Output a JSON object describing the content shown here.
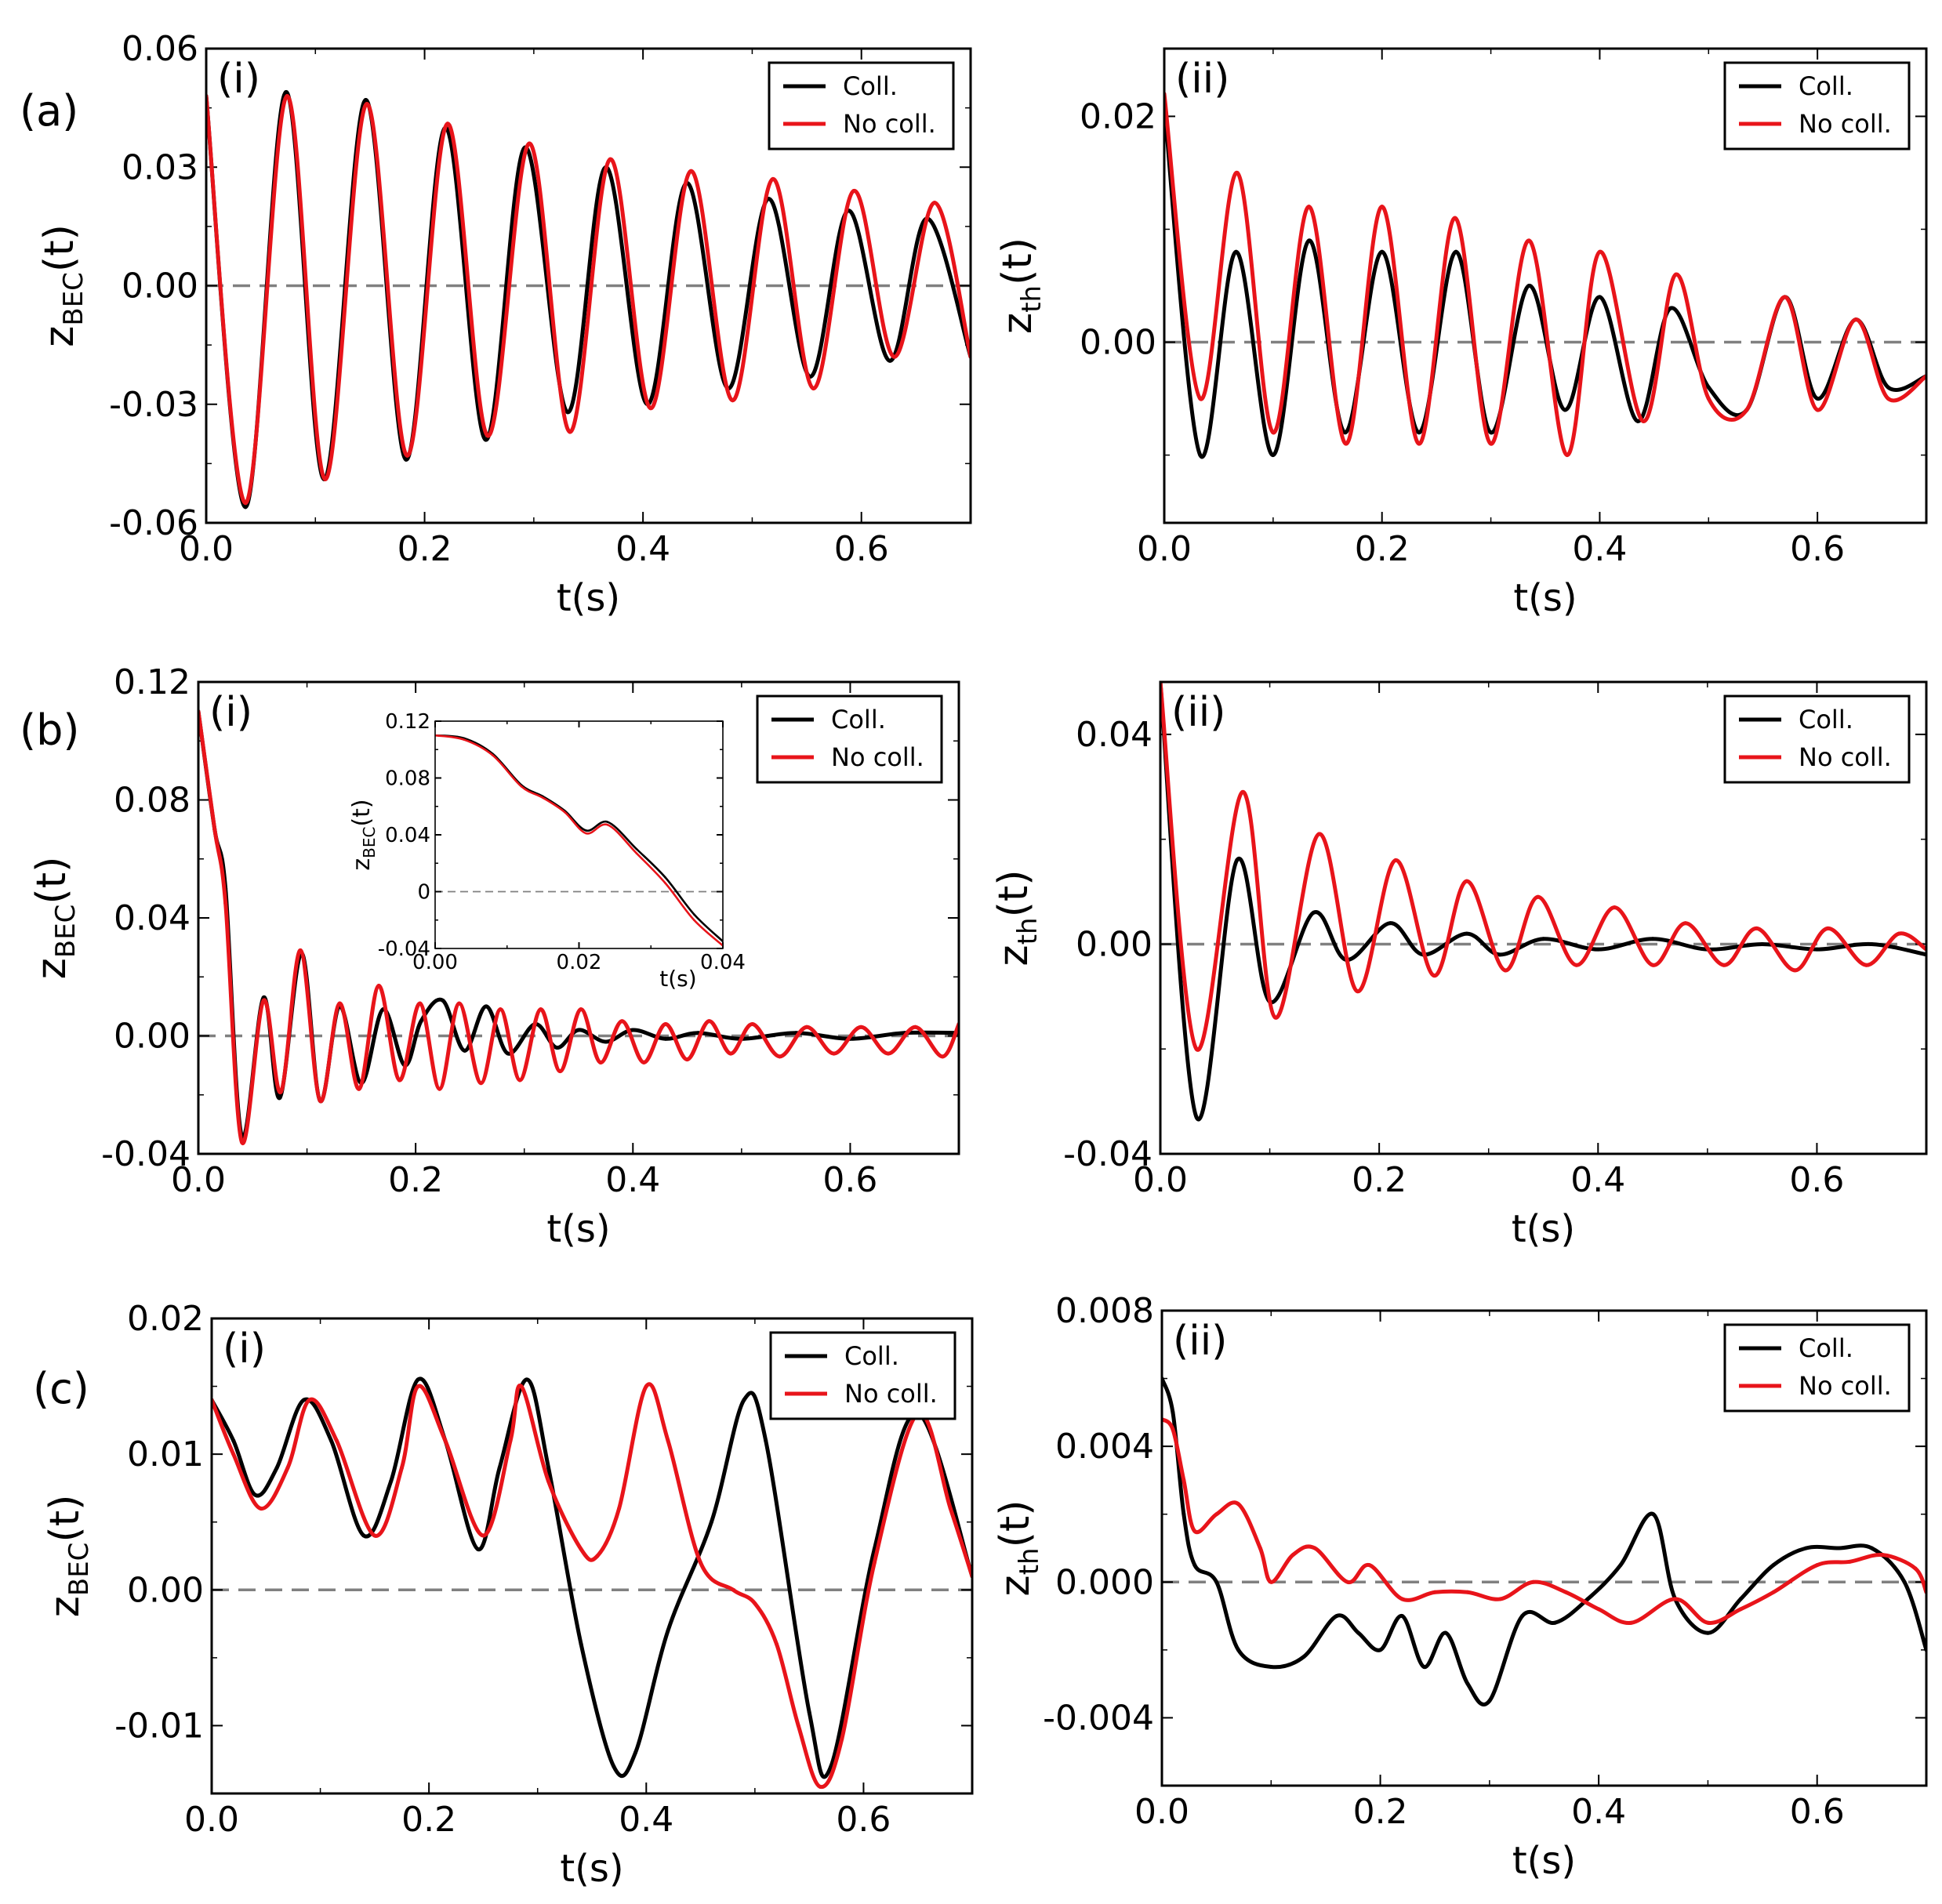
{
  "figure": {
    "row_labels": [
      "(a)",
      "(b)",
      "(c)"
    ],
    "colors": {
      "collisional": "#000000",
      "no_collisions": "#e8141a",
      "zero_line": "#808080"
    }
  },
  "chart_data": [
    {
      "id": "a-i",
      "type": "line",
      "row": "(a)",
      "panel_label": "(i)",
      "xlabel": "t(s)",
      "ylabel": "z_BEC(t)",
      "ylabel_main": "z",
      "ylabel_sub": "BEC",
      "ylabel_tail": "(t)",
      "xlim": [
        0,
        0.7
      ],
      "ylim": [
        -0.06,
        0.06
      ],
      "xticks": [
        0,
        0.2,
        0.4,
        0.6
      ],
      "xtick_labels": [
        "0.0",
        "0.2",
        "0.4",
        "0.6"
      ],
      "yticks": [
        -0.06,
        -0.03,
        0,
        0.03,
        0.06
      ],
      "ytick_labels": [
        "-0.06",
        "-0.03",
        "0.00",
        "0.03",
        "0.06"
      ],
      "legend": {
        "position": "top-right",
        "entries": [
          "Coll.",
          "No coll."
        ]
      },
      "series": [
        {
          "name": "Coll.",
          "x": [
            0,
            0.036,
            0.073,
            0.108,
            0.146,
            0.183,
            0.219,
            0.256,
            0.292,
            0.331,
            0.366,
            0.404,
            0.44,
            0.478,
            0.515,
            0.553,
            0.588,
            0.626,
            0.66,
            0.7
          ],
          "y": [
            0.048,
            -0.056,
            0.049,
            -0.049,
            0.047,
            -0.044,
            0.04,
            -0.039,
            0.035,
            -0.032,
            0.03,
            -0.03,
            0.026,
            -0.026,
            0.022,
            -0.023,
            0.019,
            -0.019,
            0.017,
            -0.018
          ]
        },
        {
          "name": "No coll.",
          "x": [
            0,
            0.036,
            0.074,
            0.109,
            0.147,
            0.184,
            0.221,
            0.258,
            0.296,
            0.333,
            0.37,
            0.407,
            0.444,
            0.482,
            0.519,
            0.556,
            0.593,
            0.63,
            0.667,
            0.7
          ],
          "y": [
            0.048,
            -0.055,
            0.048,
            -0.049,
            0.046,
            -0.043,
            0.041,
            -0.038,
            0.036,
            -0.037,
            0.032,
            -0.031,
            0.029,
            -0.029,
            0.027,
            -0.026,
            0.024,
            -0.018,
            0.021,
            -0.018
          ]
        }
      ]
    },
    {
      "id": "a-ii",
      "type": "line",
      "row": "(a)",
      "panel_label": "(ii)",
      "xlabel": "t(s)",
      "ylabel": "z_th(t)",
      "ylabel_main": "z",
      "ylabel_sub": "th",
      "ylabel_tail": "(t)",
      "xlim": [
        0,
        0.7
      ],
      "ylim": [
        -0.016,
        0.026
      ],
      "xticks": [
        0,
        0.2,
        0.4,
        0.6
      ],
      "xtick_labels": [
        "0.0",
        "0.2",
        "0.4",
        "0.6"
      ],
      "yticks": [
        0,
        0.02
      ],
      "ytick_labels": [
        "0.00",
        "0.02"
      ],
      "legend": {
        "position": "top-right",
        "entries": [
          "Coll.",
          "No coll."
        ]
      },
      "series": [
        {
          "name": "Coll.",
          "x": [
            0,
            0.033,
            0.066,
            0.1,
            0.133,
            0.166,
            0.2,
            0.234,
            0.268,
            0.3,
            0.335,
            0.368,
            0.4,
            0.435,
            0.465,
            0.5,
            0.535,
            0.57,
            0.6,
            0.635,
            0.665,
            0.7
          ],
          "y": [
            0.021,
            -0.01,
            0.008,
            -0.01,
            0.009,
            -0.008,
            0.008,
            -0.008,
            0.008,
            -0.008,
            0.005,
            -0.006,
            0.004,
            -0.007,
            0.003,
            -0.004,
            -0.006,
            0.004,
            -0.005,
            0.002,
            -0.004,
            -0.003
          ]
        },
        {
          "name": "No coll.",
          "x": [
            0,
            0.033,
            0.067,
            0.1,
            0.133,
            0.167,
            0.2,
            0.234,
            0.267,
            0.3,
            0.335,
            0.37,
            0.4,
            0.44,
            0.47,
            0.5,
            0.535,
            0.57,
            0.6,
            0.635,
            0.665,
            0.7
          ],
          "y": [
            0.022,
            -0.005,
            0.015,
            -0.008,
            0.012,
            -0.009,
            0.012,
            -0.009,
            0.011,
            -0.009,
            0.009,
            -0.01,
            0.008,
            -0.007,
            0.006,
            -0.005,
            -0.006,
            0.004,
            -0.006,
            0.002,
            -0.005,
            -0.003
          ]
        }
      ]
    },
    {
      "id": "b-i",
      "type": "line",
      "row": "(b)",
      "panel_label": "(i)",
      "xlabel": "t(s)",
      "ylabel": "z_BEC(t)",
      "ylabel_main": "z",
      "ylabel_sub": "BEC",
      "ylabel_tail": "(t)",
      "xlim": [
        0,
        0.7
      ],
      "ylim": [
        -0.04,
        0.12
      ],
      "xticks": [
        0,
        0.2,
        0.4,
        0.6
      ],
      "xtick_labels": [
        "0.0",
        "0.2",
        "0.4",
        "0.6"
      ],
      "yticks": [
        -0.04,
        0,
        0.04,
        0.08,
        0.12
      ],
      "ytick_labels": [
        "-0.04",
        "0.00",
        "0.04",
        "0.08",
        "0.12"
      ],
      "legend": {
        "position": "top-right",
        "entries": [
          "Coll.",
          "No coll."
        ]
      },
      "series": [
        {
          "name": "Coll.",
          "x": [
            0,
            0.015,
            0.025,
            0.04,
            0.06,
            0.075,
            0.095,
            0.112,
            0.13,
            0.15,
            0.17,
            0.19,
            0.205,
            0.225,
            0.245,
            0.265,
            0.285,
            0.31,
            0.33,
            0.35,
            0.375,
            0.4,
            0.43,
            0.46,
            0.5,
            0.55,
            0.6,
            0.65,
            0.7
          ],
          "y": [
            0.11,
            0.07,
            0.05,
            -0.034,
            0.013,
            -0.021,
            0.028,
            -0.022,
            0.01,
            -0.016,
            0.009,
            -0.01,
            0.005,
            0.012,
            -0.005,
            0.01,
            -0.006,
            0.004,
            -0.004,
            0.002,
            -0.002,
            0.002,
            -0.001,
            0.001,
            -0.001,
            0.001,
            -0.001,
            0.001,
            0.001
          ]
        },
        {
          "name": "No coll.",
          "x": [
            0,
            0.015,
            0.025,
            0.04,
            0.06,
            0.076,
            0.094,
            0.112,
            0.13,
            0.148,
            0.166,
            0.185,
            0.204,
            0.222,
            0.24,
            0.26,
            0.278,
            0.296,
            0.315,
            0.333,
            0.352,
            0.37,
            0.39,
            0.41,
            0.43,
            0.45,
            0.47,
            0.49,
            0.51,
            0.535,
            0.56,
            0.585,
            0.61,
            0.635,
            0.66,
            0.685,
            0.7
          ],
          "y": [
            0.11,
            0.07,
            0.045,
            -0.036,
            0.012,
            -0.019,
            0.029,
            -0.022,
            0.011,
            -0.018,
            0.017,
            -0.015,
            0.011,
            -0.018,
            0.011,
            -0.016,
            0.009,
            -0.015,
            0.009,
            -0.012,
            0.009,
            -0.009,
            0.005,
            -0.009,
            0.004,
            -0.008,
            0.005,
            -0.006,
            0.004,
            -0.007,
            0.003,
            -0.006,
            0.003,
            -0.006,
            0.003,
            -0.007,
            0.004
          ]
        }
      ],
      "inset": {
        "type": "line",
        "xlabel": "t(s)",
        "ylabel": "z_BEC(t)",
        "ylabel_main": "z",
        "ylabel_sub": "BEC",
        "ylabel_tail": "(t)",
        "xlim": [
          0,
          0.04
        ],
        "ylim": [
          -0.04,
          0.12
        ],
        "xticks": [
          0,
          0.02,
          0.04
        ],
        "xtick_labels": [
          "0.00",
          "0.02",
          "0.04"
        ],
        "yticks": [
          -0.04,
          0,
          0.04,
          0.08,
          0.12
        ],
        "ytick_labels": [
          "-0.04",
          "0",
          "0.04",
          "0.08",
          "0.12"
        ],
        "series": [
          {
            "name": "Coll.",
            "x": [
              0,
              0.004,
              0.008,
              0.012,
              0.015,
              0.018,
              0.021,
              0.024,
              0.028,
              0.032,
              0.036,
              0.04
            ],
            "y": [
              0.11,
              0.108,
              0.097,
              0.075,
              0.067,
              0.057,
              0.043,
              0.049,
              0.03,
              0.01,
              -0.016,
              -0.035
            ]
          },
          {
            "name": "No coll.",
            "x": [
              0,
              0.004,
              0.008,
              0.012,
              0.015,
              0.018,
              0.021,
              0.024,
              0.028,
              0.032,
              0.036,
              0.04
            ],
            "y": [
              0.11,
              0.107,
              0.096,
              0.074,
              0.066,
              0.056,
              0.041,
              0.047,
              0.027,
              0.006,
              -0.02,
              -0.038
            ]
          }
        ]
      }
    },
    {
      "id": "b-ii",
      "type": "line",
      "row": "(b)",
      "panel_label": "(ii)",
      "xlabel": "t(s)",
      "ylabel": "z_th(t)",
      "ylabel_main": "z",
      "ylabel_sub": "th",
      "ylabel_tail": "(t)",
      "xlim": [
        0,
        0.7
      ],
      "ylim": [
        -0.04,
        0.05
      ],
      "xticks": [
        0,
        0.2,
        0.4,
        0.6
      ],
      "xtick_labels": [
        "0.0",
        "0.2",
        "0.4",
        "0.6"
      ],
      "yticks": [
        -0.04,
        0,
        0.04
      ],
      "ytick_labels": [
        "-0.04",
        "0.00",
        "0.04"
      ],
      "legend": {
        "position": "top-right",
        "entries": [
          "Coll.",
          "No coll."
        ]
      },
      "series": [
        {
          "name": "Coll.",
          "x": [
            0,
            0.033,
            0.07,
            0.1,
            0.14,
            0.17,
            0.21,
            0.24,
            0.28,
            0.31,
            0.35,
            0.4,
            0.45,
            0.5,
            0.55,
            0.6,
            0.65,
            0.7
          ],
          "y": [
            0.05,
            -0.033,
            0.016,
            -0.011,
            0.006,
            -0.003,
            0.004,
            -0.002,
            0.002,
            -0.002,
            0.001,
            -0.001,
            0.001,
            -0.001,
            0.0,
            -0.001,
            0.0,
            -0.002
          ]
        },
        {
          "name": "No coll.",
          "x": [
            0,
            0.033,
            0.075,
            0.105,
            0.145,
            0.18,
            0.215,
            0.25,
            0.28,
            0.315,
            0.345,
            0.38,
            0.415,
            0.45,
            0.48,
            0.515,
            0.545,
            0.58,
            0.61,
            0.645,
            0.675,
            0.7
          ],
          "y": [
            0.05,
            -0.02,
            0.029,
            -0.014,
            0.021,
            -0.009,
            0.016,
            -0.006,
            0.012,
            -0.005,
            0.009,
            -0.004,
            0.007,
            -0.004,
            0.004,
            -0.004,
            0.003,
            -0.005,
            0.003,
            -0.004,
            0.002,
            -0.001
          ]
        }
      ]
    },
    {
      "id": "c-i",
      "type": "line",
      "row": "(c)",
      "panel_label": "(i)",
      "xlabel": "t(s)",
      "ylabel": "z_BEC(t)",
      "ylabel_main": "z",
      "ylabel_sub": "BEC",
      "ylabel_tail": "(t)",
      "xlim": [
        0,
        0.7
      ],
      "ylim": [
        -0.015,
        0.02
      ],
      "xticks": [
        0,
        0.2,
        0.4,
        0.6
      ],
      "xtick_labels": [
        "0.0",
        "0.2",
        "0.4",
        "0.6"
      ],
      "yticks": [
        -0.01,
        0,
        0.01,
        0.02
      ],
      "ytick_labels": [
        "-0.01",
        "0.00",
        "0.01",
        "0.02"
      ],
      "legend": {
        "position": "top-right",
        "entries": [
          "Coll.",
          "No coll."
        ]
      },
      "series": [
        {
          "name": "Coll.",
          "x": [
            0,
            0.02,
            0.04,
            0.06,
            0.085,
            0.11,
            0.14,
            0.165,
            0.19,
            0.215,
            0.245,
            0.265,
            0.29,
            0.31,
            0.34,
            0.37,
            0.39,
            0.42,
            0.46,
            0.49,
            0.51,
            0.55,
            0.57,
            0.61,
            0.65,
            0.7
          ],
          "y": [
            0.014,
            0.011,
            0.007,
            0.009,
            0.014,
            0.011,
            0.004,
            0.008,
            0.0155,
            0.011,
            0.003,
            0.009,
            0.0155,
            0.009,
            -0.004,
            -0.013,
            -0.012,
            -0.003,
            0.005,
            0.014,
            0.011,
            -0.009,
            -0.013,
            0.003,
            0.013,
            0.001
          ]
        },
        {
          "name": "No coll.",
          "x": [
            0,
            0.02,
            0.045,
            0.07,
            0.09,
            0.115,
            0.15,
            0.175,
            0.19,
            0.215,
            0.25,
            0.275,
            0.285,
            0.31,
            0.34,
            0.355,
            0.375,
            0.4,
            0.42,
            0.45,
            0.48,
            0.5,
            0.52,
            0.54,
            0.56,
            0.58,
            0.61,
            0.65,
            0.68,
            0.7
          ],
          "y": [
            0.014,
            0.01,
            0.006,
            0.009,
            0.014,
            0.011,
            0.004,
            0.009,
            0.015,
            0.011,
            0.004,
            0.011,
            0.015,
            0.008,
            0.003,
            0.0025,
            0.006,
            0.015,
            0.011,
            0.002,
            0.0,
            -0.001,
            -0.004,
            -0.01,
            -0.0145,
            -0.011,
            0.002,
            0.013,
            0.006,
            0.001
          ]
        }
      ]
    },
    {
      "id": "c-ii",
      "type": "line",
      "row": "(c)",
      "panel_label": "(ii)",
      "xlabel": "t(s)",
      "ylabel": "z_th(t)",
      "ylabel_main": "z",
      "ylabel_sub": "th",
      "ylabel_tail": "(t)",
      "xlim": [
        0,
        0.7
      ],
      "ylim": [
        -0.006,
        0.008
      ],
      "xticks": [
        0,
        0.2,
        0.4,
        0.6
      ],
      "xtick_labels": [
        "0.0",
        "0.2",
        "0.4",
        "0.6"
      ],
      "yticks": [
        -0.004,
        0,
        0.004,
        0.008
      ],
      "ytick_labels": [
        "-0.004",
        "0.000",
        "0.004",
        "0.008"
      ],
      "legend": {
        "position": "top-right",
        "entries": [
          "Coll.",
          "No coll."
        ]
      },
      "series": [
        {
          "name": "Coll.",
          "x": [
            0,
            0.01,
            0.02,
            0.03,
            0.05,
            0.07,
            0.1,
            0.13,
            0.16,
            0.18,
            0.2,
            0.22,
            0.24,
            0.26,
            0.28,
            0.3,
            0.33,
            0.36,
            0.39,
            0.42,
            0.45,
            0.47,
            0.5,
            0.53,
            0.56,
            0.59,
            0.62,
            0.65,
            0.68,
            0.7
          ],
          "y": [
            0.006,
            0.005,
            0.002,
            0.0005,
            0.0,
            -0.002,
            -0.0025,
            -0.0022,
            -0.001,
            -0.0015,
            -0.002,
            -0.001,
            -0.0025,
            -0.0015,
            -0.003,
            -0.0035,
            -0.001,
            -0.0012,
            -0.0005,
            0.0005,
            0.002,
            -0.0005,
            -0.0015,
            -0.0005,
            0.0005,
            0.001,
            0.001,
            0.001,
            0.0,
            -0.002
          ]
        },
        {
          "name": "No coll.",
          "x": [
            0,
            0.01,
            0.02,
            0.03,
            0.05,
            0.07,
            0.09,
            0.1,
            0.12,
            0.14,
            0.17,
            0.19,
            0.22,
            0.25,
            0.28,
            0.31,
            0.34,
            0.37,
            0.4,
            0.43,
            0.47,
            0.5,
            0.53,
            0.56,
            0.6,
            0.63,
            0.66,
            0.69,
            0.7
          ],
          "y": [
            0.0048,
            0.0045,
            0.003,
            0.0015,
            0.002,
            0.0023,
            0.001,
            0.0,
            0.0008,
            0.001,
            0.0,
            0.0005,
            -0.0005,
            -0.0003,
            -0.0003,
            -0.0005,
            0.0,
            -0.0003,
            -0.0008,
            -0.0012,
            -0.0005,
            -0.0012,
            -0.0008,
            -0.0003,
            0.0005,
            0.0006,
            0.0008,
            0.0004,
            -0.0003
          ]
        }
      ]
    }
  ]
}
